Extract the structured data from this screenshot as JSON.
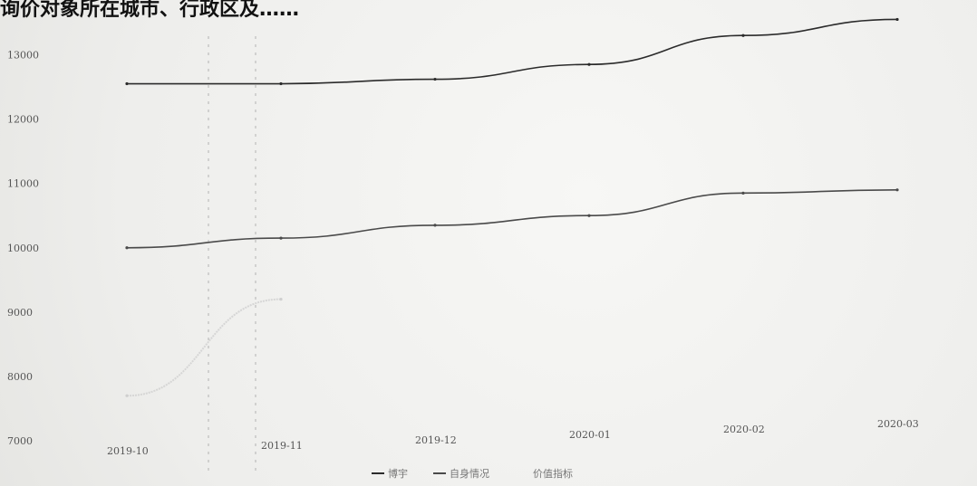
{
  "page": {
    "heading": "询价对象所在城市、行政区及……"
  },
  "chart_data": {
    "type": "line",
    "title": "",
    "xlabel": "",
    "ylabel": "",
    "categories": [
      "2019-10",
      "2019-11",
      "2019-12",
      "2020-01",
      "2020-02",
      "2020-03"
    ],
    "ylim": [
      7000,
      13500
    ],
    "yticks": [
      7000,
      8000,
      9000,
      10000,
      11000,
      12000,
      13000
    ],
    "series": [
      {
        "name": "博宇",
        "color": "#2b2b2b",
        "x": [
          "2019-10",
          "2019-11",
          "2019-12",
          "2020-01",
          "2020-02",
          "2020-03"
        ],
        "values": [
          12550,
          12550,
          12620,
          12850,
          13300,
          13550
        ]
      },
      {
        "name": "自身情况",
        "color": "#4a4a4a",
        "x": [
          "2019-10",
          "2019-11",
          "2019-12",
          "2020-01",
          "2020-02",
          "2020-03"
        ],
        "values": [
          10000,
          10150,
          10350,
          10500,
          10850,
          10900
        ]
      },
      {
        "name": "价值指标",
        "color": "#cfcfcf",
        "x": [
          "2019-10",
          "2019-11"
        ],
        "values": [
          7700,
          9200
        ]
      }
    ],
    "grid": false,
    "legend": "bottom"
  }
}
